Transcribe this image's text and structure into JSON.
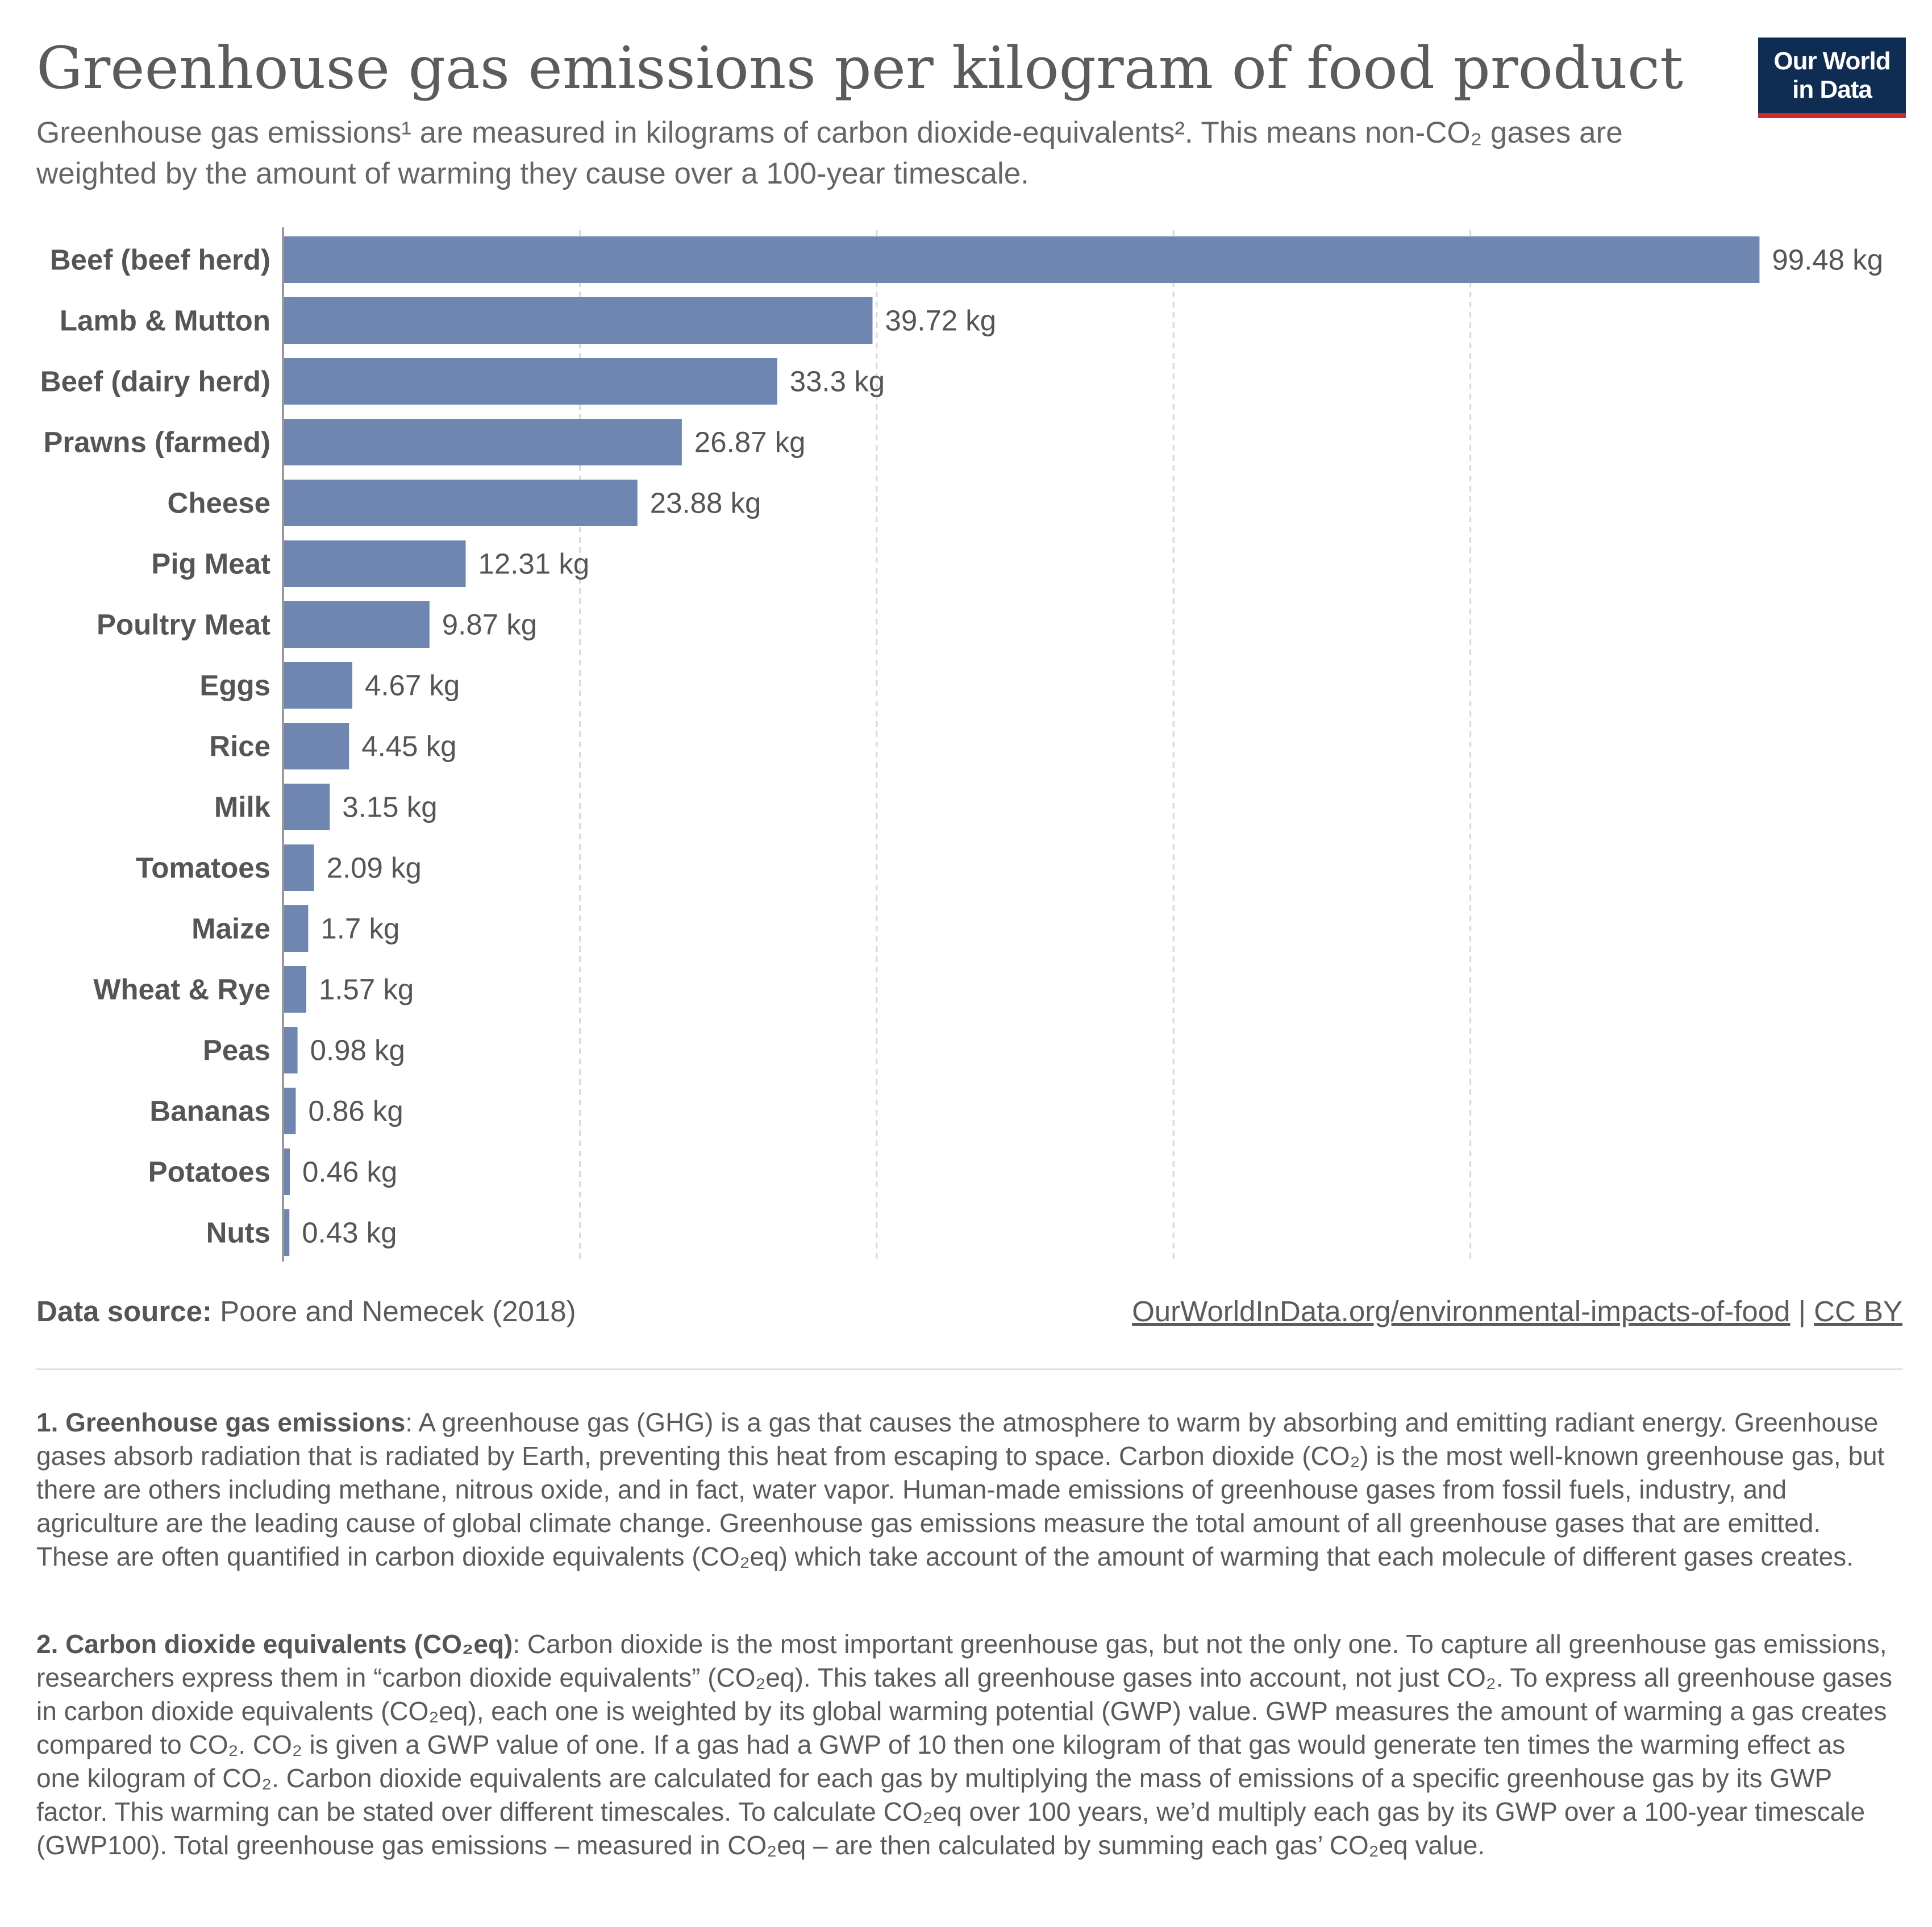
{
  "header": {
    "title": "Greenhouse gas emissions per kilogram of food product",
    "subtitle": "Greenhouse gas emissions¹ are measured in kilograms of carbon dioxide-equivalents². This means non-CO₂ gases are weighted by the amount of warming they cause over a 100-year timescale.",
    "logo_line1": "Our World",
    "logo_line2": "in Data"
  },
  "colors": {
    "bar": "#6e86b0",
    "gridline": "#d8d8d8",
    "logo_bg": "#0f2c52",
    "logo_accent": "#cc2b2b"
  },
  "chart_data": {
    "type": "bar",
    "orientation": "horizontal",
    "unit": "kg",
    "categories": [
      "Beef (beef herd)",
      "Lamb & Mutton",
      "Beef (dairy herd)",
      "Prawns (farmed)",
      "Cheese",
      "Pig Meat",
      "Poultry Meat",
      "Eggs",
      "Rice",
      "Milk",
      "Tomatoes",
      "Maize",
      "Wheat & Rye",
      "Peas",
      "Bananas",
      "Potatoes",
      "Nuts"
    ],
    "values": [
      99.48,
      39.72,
      33.3,
      26.87,
      23.88,
      12.31,
      9.87,
      4.67,
      4.45,
      3.15,
      2.09,
      1.7,
      1.57,
      0.98,
      0.86,
      0.46,
      0.43
    ],
    "value_labels": [
      "99.48 kg",
      "39.72 kg",
      "33.3 kg",
      "26.87 kg",
      "23.88 kg",
      "12.31 kg",
      "9.87 kg",
      "4.67 kg",
      "4.45 kg",
      "3.15 kg",
      "2.09 kg",
      "1.7 kg",
      "1.57 kg",
      "0.98 kg",
      "0.86 kg",
      "0.46 kg",
      "0.43 kg"
    ],
    "xlim": [
      0,
      100
    ],
    "gridlines": [
      20,
      40,
      60,
      80
    ],
    "grid": true,
    "grid_style": "dashed vertical"
  },
  "footer": {
    "source_label": "Data source:",
    "source_text": " Poore and Nemecek (2018)",
    "link_text": "OurWorldInData.org/environmental-impacts-of-food",
    "link_sep": " | ",
    "license": "CC BY"
  },
  "notes": {
    "note1_title": "1. Greenhouse gas emissions",
    "note1_text": ": A greenhouse gas (GHG) is a gas that causes the atmosphere to warm by absorbing and emitting radiant energy. Greenhouse gases absorb radiation that is radiated by Earth, preventing this heat from escaping to space. Carbon dioxide (CO₂) is the most well-known greenhouse gas, but there are others including methane, nitrous oxide, and in fact, water vapor. Human-made emissions of greenhouse gases from fossil fuels, industry, and agriculture are the leading cause of global climate change. Greenhouse gas emissions measure the total amount of all greenhouse gases that are emitted. These are often quantified in carbon dioxide equivalents (CO₂eq) which take account of the amount of warming that each molecule of different gases creates.",
    "note2_title": "2. Carbon dioxide equivalents (CO₂eq)",
    "note2_text": ": Carbon dioxide is the most important greenhouse gas, but not the only one. To capture all greenhouse gas emissions, researchers express them in “carbon dioxide equivalents” (CO₂eq). This takes all greenhouse gases into account, not just CO₂. To express all greenhouse gases in carbon dioxide equivalents (CO₂eq), each one is weighted by its global warming potential (GWP) value. GWP measures the amount of warming a gas creates compared to CO₂. CO₂ is given a GWP value of one. If a gas had a GWP of 10 then one kilogram of that gas would generate ten times the warming effect as one kilogram of CO₂. Carbon dioxide equivalents are calculated for each gas by multiplying the mass of emissions of a specific greenhouse gas by its GWP factor. This warming can be stated over different timescales. To calculate CO₂eq over 100 years, we’d multiply each gas by its GWP over a 100-year timescale (GWP100). Total greenhouse gas emissions – measured in CO₂eq – are then calculated by summing each gas’ CO₂eq value."
  }
}
